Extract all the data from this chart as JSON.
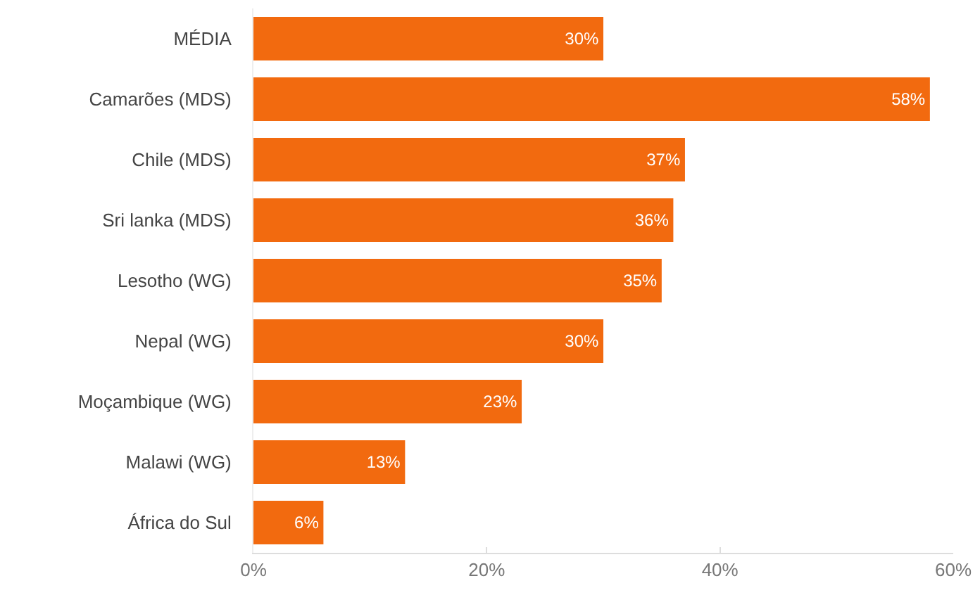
{
  "chart_data": {
    "type": "bar",
    "orientation": "horizontal",
    "categories": [
      "MÉDIA",
      "Camarões (MDS)",
      "Chile (MDS)",
      "Sri lanka (MDS)",
      "Lesotho (WG)",
      "Nepal (WG)",
      "Moçambique (WG)",
      "Malawi (WG)",
      "África do Sul"
    ],
    "values": [
      30,
      58,
      37,
      36,
      35,
      30,
      23,
      13,
      6
    ],
    "value_labels": [
      "30%",
      "58%",
      "37%",
      "36%",
      "35%",
      "30%",
      "23%",
      "13%",
      "6%"
    ],
    "color": "#f26a0f",
    "xlim": [
      0,
      60
    ],
    "xticks": [
      {
        "value": 0,
        "label": "0%"
      },
      {
        "value": 20,
        "label": "20%"
      },
      {
        "value": 40,
        "label": "40%"
      },
      {
        "value": 60,
        "label": "60%"
      }
    ],
    "legend": false
  }
}
